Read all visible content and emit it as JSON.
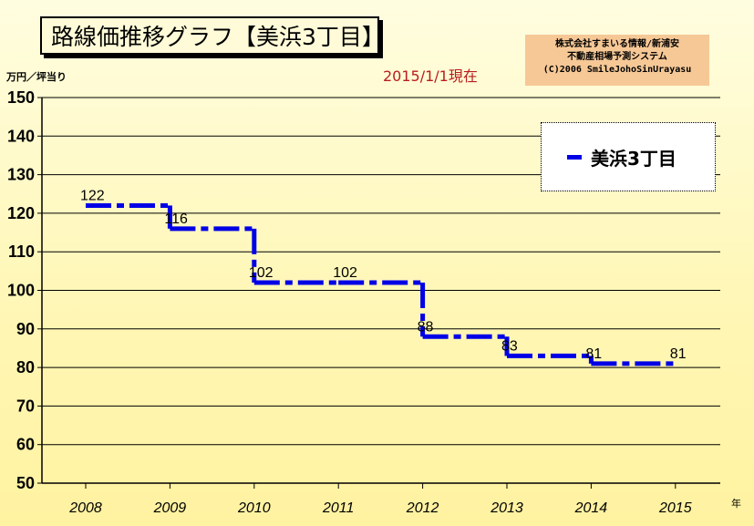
{
  "title": "路線価推移グラフ【美浜3丁目】",
  "credit": [
    "株式会社すまいる情報/新浦安",
    "不動産相場予測システム",
    "(C)2006 SmileJohoSinUrayasu"
  ],
  "date_note": "2015/1/1現在",
  "y_unit": "万円／坪当り",
  "x_unit": "年",
  "colors": {
    "series": "#0000e6",
    "grid": "#000000"
  },
  "chart_data": {
    "type": "line",
    "step": true,
    "title": "路線価推移グラフ【美浜3丁目】",
    "xlabel": "年",
    "ylabel": "万円／坪当り",
    "ylim": [
      50,
      150
    ],
    "yticks": [
      50,
      60,
      70,
      80,
      90,
      100,
      110,
      120,
      130,
      140,
      150
    ],
    "xlim": [
      2008,
      2015
    ],
    "categories": [
      "2008",
      "2009",
      "2010",
      "2011",
      "2012",
      "2013",
      "2014",
      "2015"
    ],
    "grid": true,
    "legend": "top-right",
    "series": [
      {
        "name": "美浜3丁目",
        "values": [
          122,
          116,
          102,
          102,
          88,
          83,
          81,
          81
        ]
      }
    ]
  }
}
